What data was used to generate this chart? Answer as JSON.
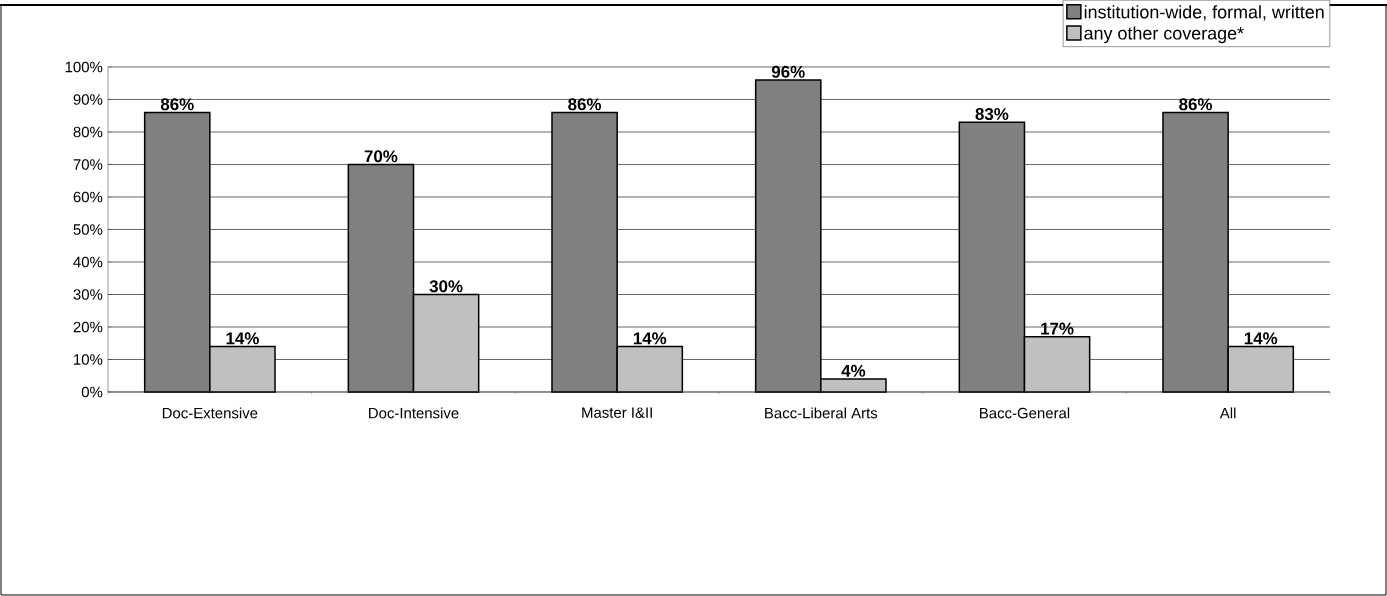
{
  "chart_data": {
    "type": "bar",
    "categories": [
      "Doc-Extensive",
      "Doc-Intensive",
      "Master I&II",
      "Bacc-Liberal Arts",
      "Bacc-General",
      "All"
    ],
    "series": [
      {
        "name": "institution-wide, formal, written",
        "color": "#808080",
        "values": [
          86,
          70,
          86,
          96,
          83,
          86
        ],
        "value_labels": [
          "86%",
          "70%",
          "86%",
          "96%",
          "83%",
          "86%"
        ]
      },
      {
        "name": "any other coverage*",
        "color": "#c0c0c0",
        "values": [
          14,
          30,
          14,
          4,
          17,
          14
        ],
        "value_labels": [
          "14%",
          "30%",
          "14%",
          "4%",
          "17%",
          "14%"
        ]
      }
    ],
    "ylim": [
      0,
      100
    ],
    "yticks": [
      {
        "value": 0,
        "label": "0%"
      },
      {
        "value": 10,
        "label": "10%"
      },
      {
        "value": 20,
        "label": "20%"
      },
      {
        "value": 30,
        "label": "30%"
      },
      {
        "value": 40,
        "label": "40%"
      },
      {
        "value": 50,
        "label": "50%"
      },
      {
        "value": 60,
        "label": "60%"
      },
      {
        "value": 70,
        "label": "70%"
      },
      {
        "value": 80,
        "label": "80%"
      },
      {
        "value": 90,
        "label": "90%"
      },
      {
        "value": 100,
        "label": "100%"
      }
    ],
    "grid": "y",
    "legend": "top right"
  }
}
